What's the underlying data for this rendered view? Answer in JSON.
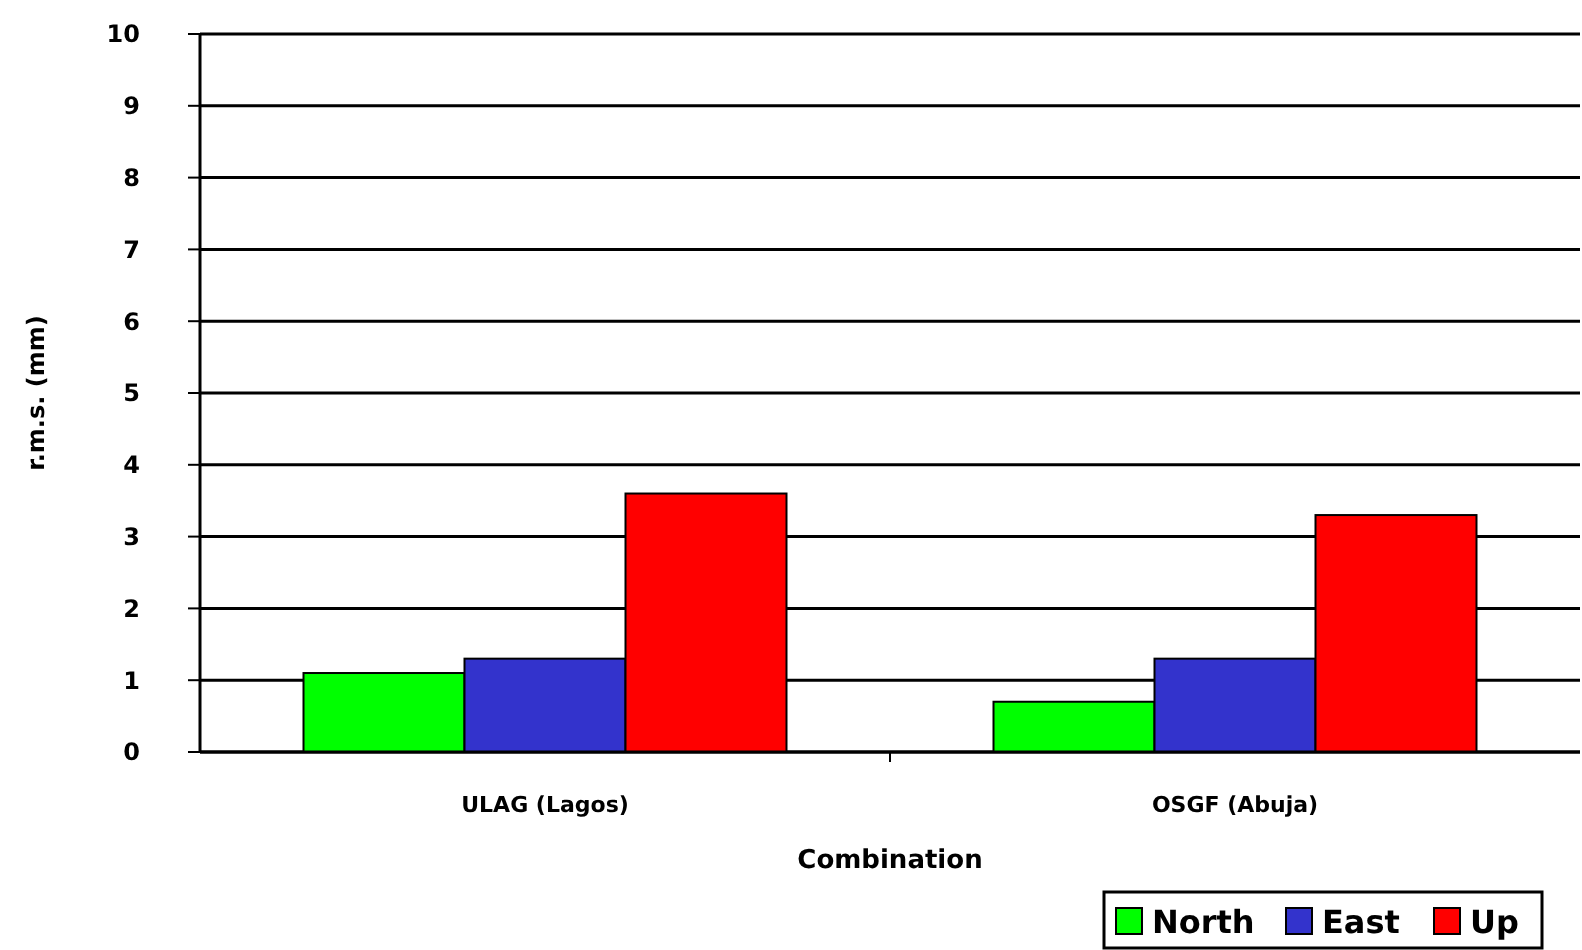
{
  "chart_data": {
    "type": "bar",
    "xlabel": "Combination",
    "ylabel": "r.m.s. (mm)",
    "categories": [
      "ULAG (Lagos)",
      "OSGF (Abuja)"
    ],
    "series": [
      {
        "name": "North",
        "color": "#00ff00",
        "values": [
          1.1,
          0.7
        ]
      },
      {
        "name": "East",
        "color": "#3333cc",
        "values": [
          1.3,
          1.3
        ]
      },
      {
        "name": "Up",
        "color": "#ff0000",
        "values": [
          3.6,
          3.3
        ]
      }
    ],
    "ylim": [
      0,
      10
    ],
    "yticks": [
      0,
      1,
      2,
      3,
      4,
      5,
      6,
      7,
      8,
      9,
      10
    ],
    "grid": "y",
    "legend": "bottom right"
  }
}
